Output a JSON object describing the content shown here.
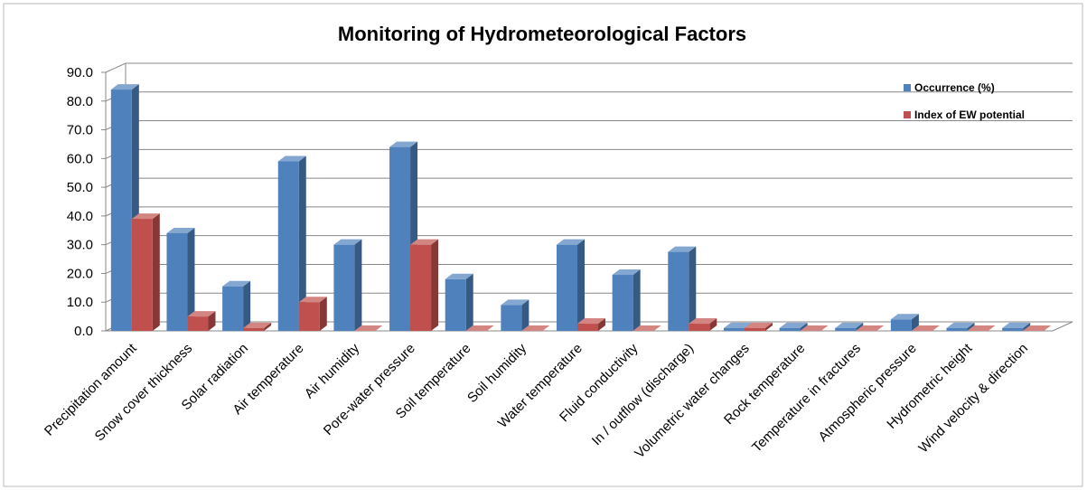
{
  "chart_data": {
    "type": "bar3d",
    "title": "Monitoring  of Hydrometeorological Factors",
    "categories": [
      "Precipitation amount",
      "Snow cover thickness",
      "Solar radiation",
      "Air temperature",
      "Air humidity",
      "Pore-water pressure",
      "Soil temperature",
      "Soil humidity",
      "Water temperature",
      "Fluid conductivity",
      "In / outflow (discharge)",
      "Volumetric water changes",
      "Rock temperature",
      "Temperature in fractures",
      "Atmospheric pressure",
      "Hydrometric height",
      "Wind velocity & direction"
    ],
    "series": [
      {
        "name": "Occurrence (%)",
        "color": "#4f81bd",
        "values": [
          84,
          34,
          15.5,
          59,
          30,
          64,
          18,
          9,
          30,
          19.5,
          27.5,
          1,
          1,
          1,
          4,
          1,
          1
        ]
      },
      {
        "name": "Index of EW potential",
        "color": "#c0504d",
        "values": [
          39,
          5,
          1,
          10,
          0,
          30,
          0,
          0,
          2.5,
          0,
          2.5,
          1,
          0,
          0,
          0,
          0,
          0
        ]
      }
    ],
    "ylim": [
      0,
      90
    ],
    "yticks": [
      {
        "value": 0,
        "label": "0.0"
      },
      {
        "value": 10,
        "label": "10.0"
      },
      {
        "value": 20,
        "label": "20.0"
      },
      {
        "value": 30,
        "label": "30.0"
      },
      {
        "value": 40,
        "label": "40.0"
      },
      {
        "value": 50,
        "label": "50.0"
      },
      {
        "value": 60,
        "label": "60.0"
      },
      {
        "value": 70,
        "label": "70.0"
      },
      {
        "value": 80,
        "label": "80.0"
      },
      {
        "value": 90,
        "label": "90.0"
      }
    ],
    "grid": true,
    "legend": "right"
  }
}
